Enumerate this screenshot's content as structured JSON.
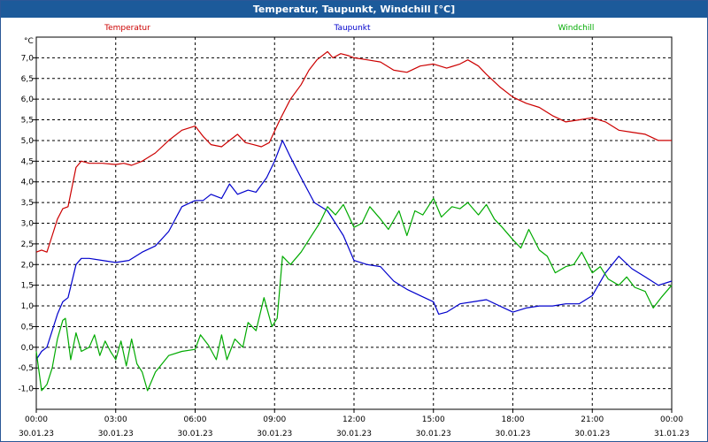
{
  "window": {
    "title": "Temperatur, Taupunkt, Windchill [°C]"
  },
  "chart_data": {
    "type": "line",
    "title": "Temperatur, Taupunkt, Windchill [°C]",
    "ylabel": "°C",
    "ylim": [
      -1.5,
      7.5
    ],
    "xlim_hours": [
      0,
      24
    ],
    "y_ticks": [
      "-1,0",
      "-0,5",
      "0,0",
      "0,5",
      "1,0",
      "1,5",
      "2,0",
      "2,5",
      "3,0",
      "3,5",
      "4,0",
      "4,5",
      "5,0",
      "5,5",
      "6,0",
      "6,5",
      "7,0"
    ],
    "x_ticks": [
      {
        "time": "00:00",
        "date": "30.01.23"
      },
      {
        "time": "03:00",
        "date": "30.01.23"
      },
      {
        "time": "06:00",
        "date": "30.01.23"
      },
      {
        "time": "09:00",
        "date": "30.01.23"
      },
      {
        "time": "12:00",
        "date": "30.01.23"
      },
      {
        "time": "15:00",
        "date": "30.01.23"
      },
      {
        "time": "18:00",
        "date": "30.01.23"
      },
      {
        "time": "21:00",
        "date": "30.01.23"
      },
      {
        "time": "00:00",
        "date": "31.01.23"
      }
    ],
    "grid": true,
    "series": [
      {
        "name": "Temperatur",
        "color": "#cc0000",
        "points": [
          [
            0,
            2.3
          ],
          [
            0.2,
            2.35
          ],
          [
            0.4,
            2.3
          ],
          [
            0.6,
            2.7
          ],
          [
            0.8,
            3.1
          ],
          [
            1.0,
            3.35
          ],
          [
            1.2,
            3.4
          ],
          [
            1.5,
            4.35
          ],
          [
            1.7,
            4.5
          ],
          [
            2.0,
            4.45
          ],
          [
            2.5,
            4.45
          ],
          [
            3.0,
            4.42
          ],
          [
            3.3,
            4.45
          ],
          [
            3.6,
            4.4
          ],
          [
            4.0,
            4.5
          ],
          [
            4.5,
            4.7
          ],
          [
            5.0,
            5.0
          ],
          [
            5.5,
            5.25
          ],
          [
            6.0,
            5.35
          ],
          [
            6.3,
            5.1
          ],
          [
            6.6,
            4.9
          ],
          [
            7.0,
            4.85
          ],
          [
            7.3,
            5.0
          ],
          [
            7.6,
            5.15
          ],
          [
            7.9,
            4.95
          ],
          [
            8.2,
            4.9
          ],
          [
            8.5,
            4.85
          ],
          [
            8.8,
            4.95
          ],
          [
            9.2,
            5.5
          ],
          [
            9.6,
            6.0
          ],
          [
            10.0,
            6.35
          ],
          [
            10.3,
            6.7
          ],
          [
            10.6,
            6.95
          ],
          [
            11.0,
            7.15
          ],
          [
            11.2,
            7.0
          ],
          [
            11.5,
            7.1
          ],
          [
            11.8,
            7.05
          ],
          [
            12.0,
            7.0
          ],
          [
            12.5,
            6.95
          ],
          [
            13.0,
            6.9
          ],
          [
            13.5,
            6.7
          ],
          [
            14.0,
            6.65
          ],
          [
            14.5,
            6.8
          ],
          [
            15.0,
            6.85
          ],
          [
            15.5,
            6.75
          ],
          [
            16.0,
            6.85
          ],
          [
            16.3,
            6.95
          ],
          [
            16.7,
            6.8
          ],
          [
            17.0,
            6.6
          ],
          [
            17.5,
            6.3
          ],
          [
            18.0,
            6.05
          ],
          [
            18.5,
            5.9
          ],
          [
            19.0,
            5.8
          ],
          [
            19.5,
            5.6
          ],
          [
            20.0,
            5.45
          ],
          [
            20.5,
            5.5
          ],
          [
            21.0,
            5.55
          ],
          [
            21.5,
            5.45
          ],
          [
            22.0,
            5.25
          ],
          [
            22.5,
            5.2
          ],
          [
            23.0,
            5.15
          ],
          [
            23.5,
            5.0
          ],
          [
            24.0,
            5.0
          ]
        ]
      },
      {
        "name": "Taupunkt",
        "color": "#0000cc",
        "points": [
          [
            0,
            -0.3
          ],
          [
            0.2,
            -0.1
          ],
          [
            0.4,
            0.0
          ],
          [
            0.6,
            0.4
          ],
          [
            0.8,
            0.8
          ],
          [
            1.0,
            1.1
          ],
          [
            1.2,
            1.2
          ],
          [
            1.5,
            2.0
          ],
          [
            1.7,
            2.15
          ],
          [
            2.0,
            2.15
          ],
          [
            2.5,
            2.1
          ],
          [
            3.0,
            2.05
          ],
          [
            3.5,
            2.1
          ],
          [
            4.0,
            2.3
          ],
          [
            4.5,
            2.45
          ],
          [
            5.0,
            2.8
          ],
          [
            5.5,
            3.4
          ],
          [
            6.0,
            3.55
          ],
          [
            6.3,
            3.55
          ],
          [
            6.6,
            3.7
          ],
          [
            7.0,
            3.6
          ],
          [
            7.3,
            3.95
          ],
          [
            7.6,
            3.7
          ],
          [
            8.0,
            3.8
          ],
          [
            8.3,
            3.75
          ],
          [
            8.7,
            4.1
          ],
          [
            9.0,
            4.5
          ],
          [
            9.3,
            5.0
          ],
          [
            9.6,
            4.6
          ],
          [
            10.0,
            4.1
          ],
          [
            10.5,
            3.5
          ],
          [
            11.0,
            3.3
          ],
          [
            11.3,
            3.0
          ],
          [
            11.6,
            2.7
          ],
          [
            12.0,
            2.1
          ],
          [
            12.5,
            2.0
          ],
          [
            13.0,
            1.95
          ],
          [
            13.5,
            1.6
          ],
          [
            14.0,
            1.4
          ],
          [
            14.5,
            1.25
          ],
          [
            15.0,
            1.1
          ],
          [
            15.2,
            0.8
          ],
          [
            15.5,
            0.85
          ],
          [
            16.0,
            1.05
          ],
          [
            16.5,
            1.1
          ],
          [
            17.0,
            1.15
          ],
          [
            17.5,
            1.0
          ],
          [
            18.0,
            0.85
          ],
          [
            18.5,
            0.95
          ],
          [
            19.0,
            1.0
          ],
          [
            19.5,
            1.0
          ],
          [
            20.0,
            1.05
          ],
          [
            20.5,
            1.05
          ],
          [
            21.0,
            1.25
          ],
          [
            21.5,
            1.8
          ],
          [
            22.0,
            2.2
          ],
          [
            22.5,
            1.9
          ],
          [
            23.0,
            1.7
          ],
          [
            23.5,
            1.5
          ],
          [
            24.0,
            1.6
          ]
        ]
      },
      {
        "name": "Windchill",
        "color": "#00aa00",
        "points": [
          [
            0,
            -0.1
          ],
          [
            0.2,
            -1.05
          ],
          [
            0.4,
            -0.9
          ],
          [
            0.6,
            -0.5
          ],
          [
            0.8,
            0.2
          ],
          [
            1.0,
            0.65
          ],
          [
            1.1,
            0.7
          ],
          [
            1.3,
            -0.3
          ],
          [
            1.5,
            0.35
          ],
          [
            1.7,
            -0.1
          ],
          [
            2.0,
            0.0
          ],
          [
            2.2,
            0.3
          ],
          [
            2.4,
            -0.2
          ],
          [
            2.6,
            0.15
          ],
          [
            2.8,
            -0.1
          ],
          [
            3.0,
            -0.3
          ],
          [
            3.2,
            0.15
          ],
          [
            3.4,
            -0.45
          ],
          [
            3.6,
            0.2
          ],
          [
            3.8,
            -0.4
          ],
          [
            4.0,
            -0.6
          ],
          [
            4.2,
            -1.05
          ],
          [
            4.5,
            -0.6
          ],
          [
            5.0,
            -0.2
          ],
          [
            5.5,
            -0.1
          ],
          [
            6.0,
            -0.05
          ],
          [
            6.2,
            0.3
          ],
          [
            6.5,
            0.05
          ],
          [
            6.8,
            -0.3
          ],
          [
            7.0,
            0.3
          ],
          [
            7.2,
            -0.3
          ],
          [
            7.5,
            0.2
          ],
          [
            7.8,
            0.0
          ],
          [
            8.0,
            0.6
          ],
          [
            8.3,
            0.4
          ],
          [
            8.6,
            1.2
          ],
          [
            8.9,
            0.5
          ],
          [
            9.1,
            0.7
          ],
          [
            9.3,
            2.2
          ],
          [
            9.6,
            2.0
          ],
          [
            10.0,
            2.3
          ],
          [
            10.3,
            2.6
          ],
          [
            10.7,
            3.0
          ],
          [
            11.0,
            3.4
          ],
          [
            11.3,
            3.2
          ],
          [
            11.6,
            3.45
          ],
          [
            12.0,
            2.9
          ],
          [
            12.3,
            3.0
          ],
          [
            12.6,
            3.4
          ],
          [
            13.0,
            3.1
          ],
          [
            13.3,
            2.85
          ],
          [
            13.7,
            3.3
          ],
          [
            14.0,
            2.7
          ],
          [
            14.3,
            3.3
          ],
          [
            14.6,
            3.2
          ],
          [
            15.0,
            3.6
          ],
          [
            15.3,
            3.15
          ],
          [
            15.7,
            3.4
          ],
          [
            16.0,
            3.35
          ],
          [
            16.3,
            3.5
          ],
          [
            16.7,
            3.2
          ],
          [
            17.0,
            3.45
          ],
          [
            17.3,
            3.1
          ],
          [
            17.6,
            2.9
          ],
          [
            18.0,
            2.6
          ],
          [
            18.3,
            2.4
          ],
          [
            18.6,
            2.85
          ],
          [
            19.0,
            2.35
          ],
          [
            19.3,
            2.2
          ],
          [
            19.6,
            1.8
          ],
          [
            20.0,
            1.95
          ],
          [
            20.3,
            2.0
          ],
          [
            20.6,
            2.3
          ],
          [
            21.0,
            1.8
          ],
          [
            21.3,
            1.95
          ],
          [
            21.6,
            1.65
          ],
          [
            22.0,
            1.5
          ],
          [
            22.3,
            1.7
          ],
          [
            22.6,
            1.45
          ],
          [
            23.0,
            1.35
          ],
          [
            23.3,
            0.95
          ],
          [
            23.6,
            1.2
          ],
          [
            24.0,
            1.5
          ]
        ]
      }
    ]
  }
}
